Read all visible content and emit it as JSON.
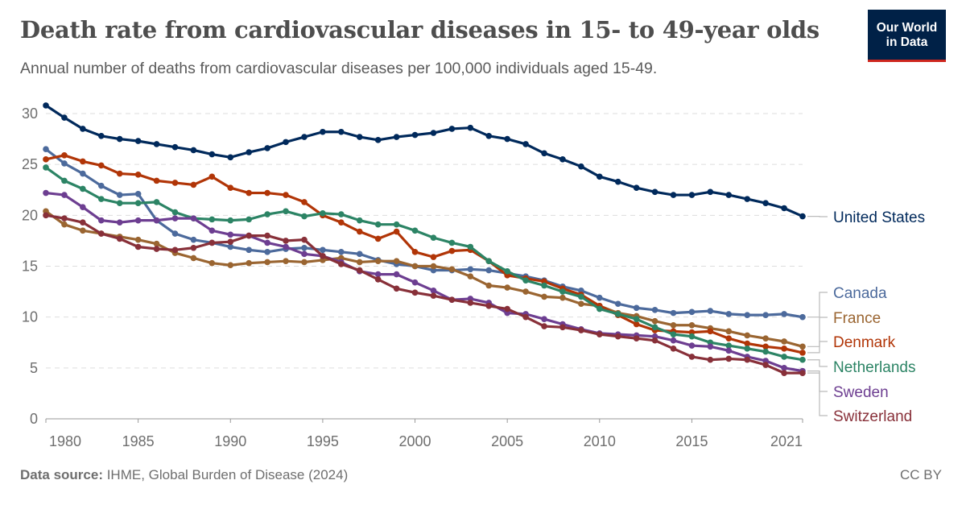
{
  "header": {
    "title": "Death rate from cardiovascular diseases in 15- to 49-year olds",
    "subtitle": "Annual number of deaths from cardiovascular diseases per 100,000 individuals aged 15-49.",
    "logo_line1": "Our World",
    "logo_line2": "in Data"
  },
  "footer": {
    "source_label": "Data source:",
    "source_text": " IHME, Global Burden of Disease (2024)",
    "license": "CC BY"
  },
  "chart_data": {
    "type": "line",
    "title": "Death rate from cardiovascular diseases in 15- to 49-year olds",
    "xlabel": "",
    "ylabel": "",
    "xlim": [
      1980,
      2021
    ],
    "ylim": [
      0,
      30
    ],
    "grid": true,
    "legend": "right, inline labels",
    "x_ticks": [
      "1980",
      "1985",
      "1990",
      "1995",
      "2000",
      "2005",
      "2010",
      "2015",
      "2021"
    ],
    "y_ticks": [
      "0",
      "5",
      "10",
      "15",
      "20",
      "25",
      "30"
    ],
    "x": [
      1980,
      1981,
      1982,
      1983,
      1984,
      1985,
      1986,
      1987,
      1988,
      1989,
      1990,
      1991,
      1992,
      1993,
      1994,
      1995,
      1996,
      1997,
      1998,
      1999,
      2000,
      2001,
      2002,
      2003,
      2004,
      2005,
      2006,
      2007,
      2008,
      2009,
      2010,
      2011,
      2012,
      2013,
      2014,
      2015,
      2016,
      2017,
      2018,
      2019,
      2020,
      2021
    ],
    "series": [
      {
        "name": "United States",
        "color": "#00295b",
        "values": [
          30.8,
          29.6,
          28.5,
          27.8,
          27.5,
          27.3,
          27.0,
          26.7,
          26.4,
          26.0,
          25.7,
          26.2,
          26.6,
          27.2,
          27.7,
          28.2,
          28.2,
          27.7,
          27.4,
          27.7,
          27.9,
          28.1,
          28.5,
          28.6,
          27.8,
          27.5,
          27.0,
          26.1,
          25.5,
          24.8,
          23.8,
          23.3,
          22.7,
          22.3,
          22.0,
          22.0,
          22.3,
          22.0,
          21.6,
          21.2,
          20.7,
          19.9
        ]
      },
      {
        "name": "Canada",
        "color": "#4c6a9c",
        "values": [
          26.5,
          25.1,
          24.1,
          22.9,
          22.0,
          22.1,
          19.5,
          18.2,
          17.6,
          17.3,
          16.9,
          16.6,
          16.4,
          16.7,
          16.8,
          16.6,
          16.4,
          16.2,
          15.6,
          15.2,
          15.0,
          14.6,
          14.6,
          14.7,
          14.6,
          14.3,
          14.0,
          13.6,
          13.0,
          12.6,
          11.9,
          11.3,
          10.9,
          10.7,
          10.4,
          10.5,
          10.6,
          10.3,
          10.2,
          10.2,
          10.3,
          10.0
        ]
      },
      {
        "name": "France",
        "color": "#9a6531",
        "values": [
          20.4,
          19.1,
          18.5,
          18.2,
          17.9,
          17.6,
          17.2,
          16.3,
          15.8,
          15.3,
          15.1,
          15.3,
          15.4,
          15.5,
          15.4,
          15.6,
          15.8,
          15.4,
          15.5,
          15.5,
          15.0,
          15.0,
          14.7,
          14.0,
          13.1,
          12.9,
          12.5,
          12.0,
          11.9,
          11.3,
          11.1,
          10.4,
          10.1,
          9.6,
          9.2,
          9.2,
          8.9,
          8.6,
          8.2,
          7.9,
          7.6,
          7.1
        ]
      },
      {
        "name": "Denmark",
        "color": "#b13507",
        "values": [
          25.5,
          25.9,
          25.3,
          24.9,
          24.1,
          24.0,
          23.4,
          23.2,
          23.0,
          23.8,
          22.7,
          22.2,
          22.2,
          22.0,
          21.3,
          20.0,
          19.3,
          18.4,
          17.7,
          18.4,
          16.4,
          15.9,
          16.5,
          16.6,
          15.5,
          14.1,
          13.8,
          13.5,
          12.8,
          12.2,
          11.1,
          10.2,
          9.3,
          8.7,
          8.6,
          8.5,
          8.6,
          7.9,
          7.4,
          7.1,
          6.9,
          6.5
        ]
      },
      {
        "name": "Netherlands",
        "color": "#2c8465",
        "values": [
          24.7,
          23.4,
          22.6,
          21.6,
          21.2,
          21.2,
          21.3,
          20.3,
          19.7,
          19.6,
          19.5,
          19.6,
          20.1,
          20.4,
          19.9,
          20.2,
          20.1,
          19.5,
          19.1,
          19.1,
          18.5,
          17.8,
          17.3,
          16.9,
          15.5,
          14.5,
          13.6,
          13.1,
          12.5,
          12.0,
          10.8,
          10.3,
          9.8,
          9.0,
          8.3,
          8.1,
          7.5,
          7.2,
          6.9,
          6.6,
          6.1,
          5.8
        ]
      },
      {
        "name": "Sweden",
        "color": "#6d3e91",
        "values": [
          22.2,
          22.0,
          20.8,
          19.5,
          19.3,
          19.5,
          19.5,
          19.7,
          19.7,
          18.5,
          18.1,
          18.0,
          17.3,
          16.9,
          16.2,
          16.0,
          15.4,
          14.5,
          14.2,
          14.2,
          13.4,
          12.6,
          11.7,
          11.8,
          11.4,
          10.4,
          10.3,
          9.8,
          9.3,
          8.8,
          8.4,
          8.3,
          8.2,
          8.1,
          7.7,
          7.2,
          7.1,
          6.7,
          6.1,
          5.7,
          5.0,
          4.7
        ]
      },
      {
        "name": "Switzerland",
        "color": "#883039",
        "values": [
          20.0,
          19.7,
          19.3,
          18.2,
          17.7,
          16.9,
          16.7,
          16.6,
          16.8,
          17.3,
          17.4,
          18.0,
          18.0,
          17.5,
          17.6,
          16.0,
          15.2,
          14.6,
          13.7,
          12.8,
          12.4,
          12.1,
          11.7,
          11.4,
          11.1,
          10.8,
          10.0,
          9.1,
          9.0,
          8.7,
          8.3,
          8.1,
          7.9,
          7.7,
          6.9,
          6.1,
          5.8,
          5.9,
          5.8,
          5.3,
          4.5,
          4.5
        ]
      }
    ]
  }
}
